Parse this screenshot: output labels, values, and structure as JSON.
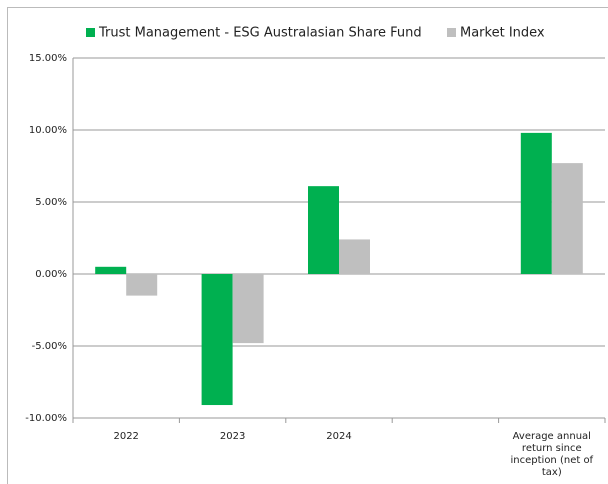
{
  "chart_data": {
    "type": "bar",
    "categories": [
      "2022",
      "2023",
      "2024",
      null,
      "Average annual return since inception (net of tax)"
    ],
    "series": [
      {
        "name": "Trust Management - ESG Australasian Share Fund",
        "color": "#00b050",
        "values": [
          0.5,
          -9.1,
          6.1,
          null,
          9.8
        ]
      },
      {
        "name": "Market Index",
        "color": "#bfbfbf",
        "values": [
          -1.5,
          -4.8,
          2.4,
          null,
          7.7
        ]
      }
    ],
    "ylim": [
      -10,
      15
    ],
    "yticks": [
      {
        "value": -10,
        "label": "-10.00%"
      },
      {
        "value": -5,
        "label": "-5.00%"
      },
      {
        "value": 0,
        "label": "0.00%"
      },
      {
        "value": 5,
        "label": "5.00%"
      },
      {
        "value": 10,
        "label": "10.00%"
      },
      {
        "value": 15,
        "label": "15.00%"
      }
    ],
    "grid": true
  }
}
